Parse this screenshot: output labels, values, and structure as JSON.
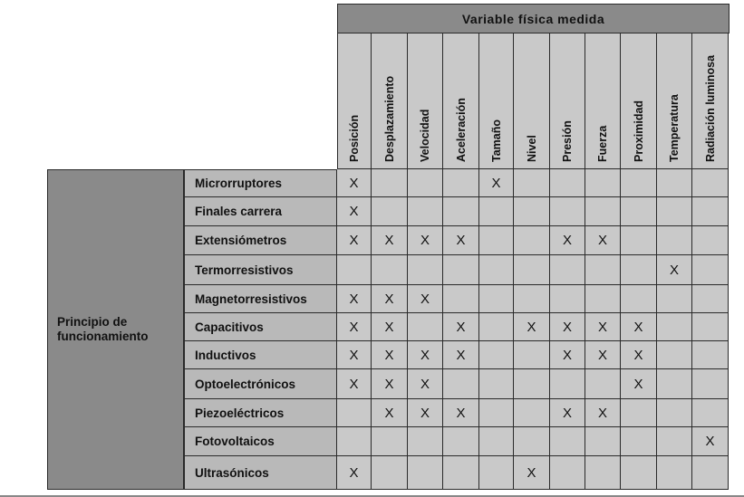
{
  "table": {
    "header_title": "Variable física medida",
    "columns": [
      "Posición",
      "Desplazamiento",
      "Velocidad",
      "Aceleración",
      "Tamaño",
      "Nivel",
      "Presión",
      "Fuerza",
      "Proximidad",
      "Temperatura",
      "Radiación luminosa"
    ],
    "group_label_line1": "Principio de",
    "group_label_line2": "funcionamiento",
    "rows": [
      {
        "label": "Microrruptores",
        "marks": [
          1,
          0,
          0,
          0,
          1,
          0,
          0,
          0,
          0,
          0,
          0
        ]
      },
      {
        "label": "Finales  carrera",
        "marks": [
          1,
          0,
          0,
          0,
          0,
          0,
          0,
          0,
          0,
          0,
          0
        ]
      },
      {
        "label": "Extensiómetros",
        "marks": [
          1,
          1,
          1,
          1,
          0,
          0,
          1,
          1,
          0,
          0,
          0
        ]
      },
      {
        "label": "Termorresistivos",
        "marks": [
          0,
          0,
          0,
          0,
          0,
          0,
          0,
          0,
          0,
          1,
          0
        ]
      },
      {
        "label": "Magnetorresistivos",
        "marks": [
          1,
          1,
          1,
          0,
          0,
          0,
          0,
          0,
          0,
          0,
          0
        ]
      },
      {
        "label": "Capacitivos",
        "marks": [
          1,
          1,
          0,
          1,
          0,
          1,
          1,
          1,
          1,
          0,
          0
        ]
      },
      {
        "label": "Inductivos",
        "marks": [
          1,
          1,
          1,
          1,
          0,
          0,
          1,
          1,
          1,
          0,
          0
        ]
      },
      {
        "label": "Optoelectrónicos",
        "marks": [
          1,
          1,
          1,
          0,
          0,
          0,
          0,
          0,
          1,
          0,
          0
        ]
      },
      {
        "label": "Piezoeléctricos",
        "marks": [
          0,
          1,
          1,
          1,
          0,
          0,
          1,
          1,
          0,
          0,
          0
        ]
      },
      {
        "label": "Fotovoltaicos",
        "marks": [
          0,
          0,
          0,
          0,
          0,
          0,
          0,
          0,
          0,
          0,
          1
        ]
      },
      {
        "label": "Ultrasónicos",
        "marks": [
          1,
          0,
          0,
          0,
          0,
          1,
          0,
          0,
          0,
          0,
          0
        ]
      }
    ],
    "mark_symbol": "X"
  }
}
